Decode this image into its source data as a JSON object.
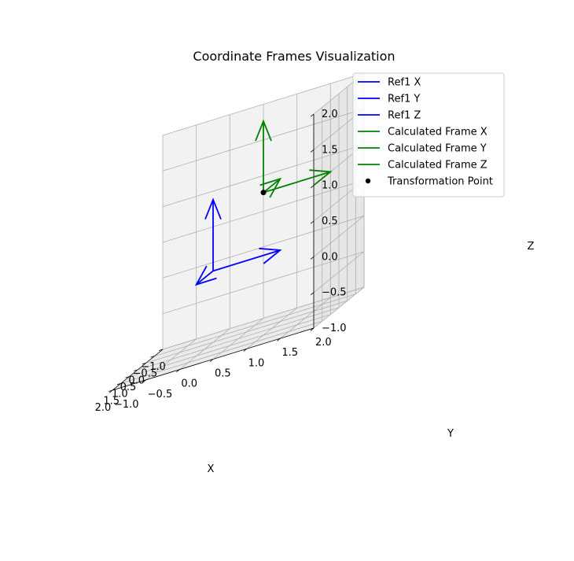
{
  "chart_data": {
    "type": "line",
    "projection": "3d",
    "title": "Coordinate Frames Visualization",
    "xlabel": "X",
    "ylabel": "Y",
    "zlabel": "Z",
    "xlim": [
      -1,
      2
    ],
    "ylim": [
      -1,
      2
    ],
    "zlim": [
      -1,
      2
    ],
    "xticks": [
      "−1.0",
      "−0.5",
      "0.0",
      "0.5",
      "1.0",
      "1.5",
      "2.0"
    ],
    "yticks": [
      "−1.0",
      "−0.5",
      "0.0",
      "0.5",
      "1.0",
      "1.5",
      "2.0"
    ],
    "zticks": [
      "−1.0",
      "−0.5",
      "0.0",
      "0.5",
      "1.0",
      "1.5",
      "2.0"
    ],
    "grid": true,
    "legend_position": "top-right",
    "series": [
      {
        "name": "Ref1 X",
        "color": "#0000ff",
        "type": "arrow",
        "start": [
          0,
          0,
          0
        ],
        "end": [
          1,
          0,
          0
        ]
      },
      {
        "name": "Ref1 Y",
        "color": "#0000ff",
        "type": "arrow",
        "start": [
          0,
          0,
          0
        ],
        "end": [
          0,
          1,
          0
        ]
      },
      {
        "name": "Ref1 Z",
        "color": "#0000ff",
        "type": "arrow",
        "start": [
          0,
          0,
          0
        ],
        "end": [
          0,
          0,
          1
        ]
      },
      {
        "name": "Calculated Frame X",
        "color": "#008000",
        "type": "arrow",
        "start": [
          1,
          1,
          1
        ],
        "end": [
          1,
          2,
          1
        ]
      },
      {
        "name": "Calculated Frame Y",
        "color": "#008000",
        "type": "arrow",
        "start": [
          1,
          1,
          1
        ],
        "end": [
          0,
          1,
          1
        ]
      },
      {
        "name": "Calculated Frame Z",
        "color": "#008000",
        "type": "arrow",
        "start": [
          1,
          1,
          1
        ],
        "end": [
          1,
          1,
          2
        ]
      },
      {
        "name": "Transformation Point",
        "color": "#000000",
        "type": "point",
        "position": [
          1,
          1,
          1
        ]
      }
    ]
  }
}
